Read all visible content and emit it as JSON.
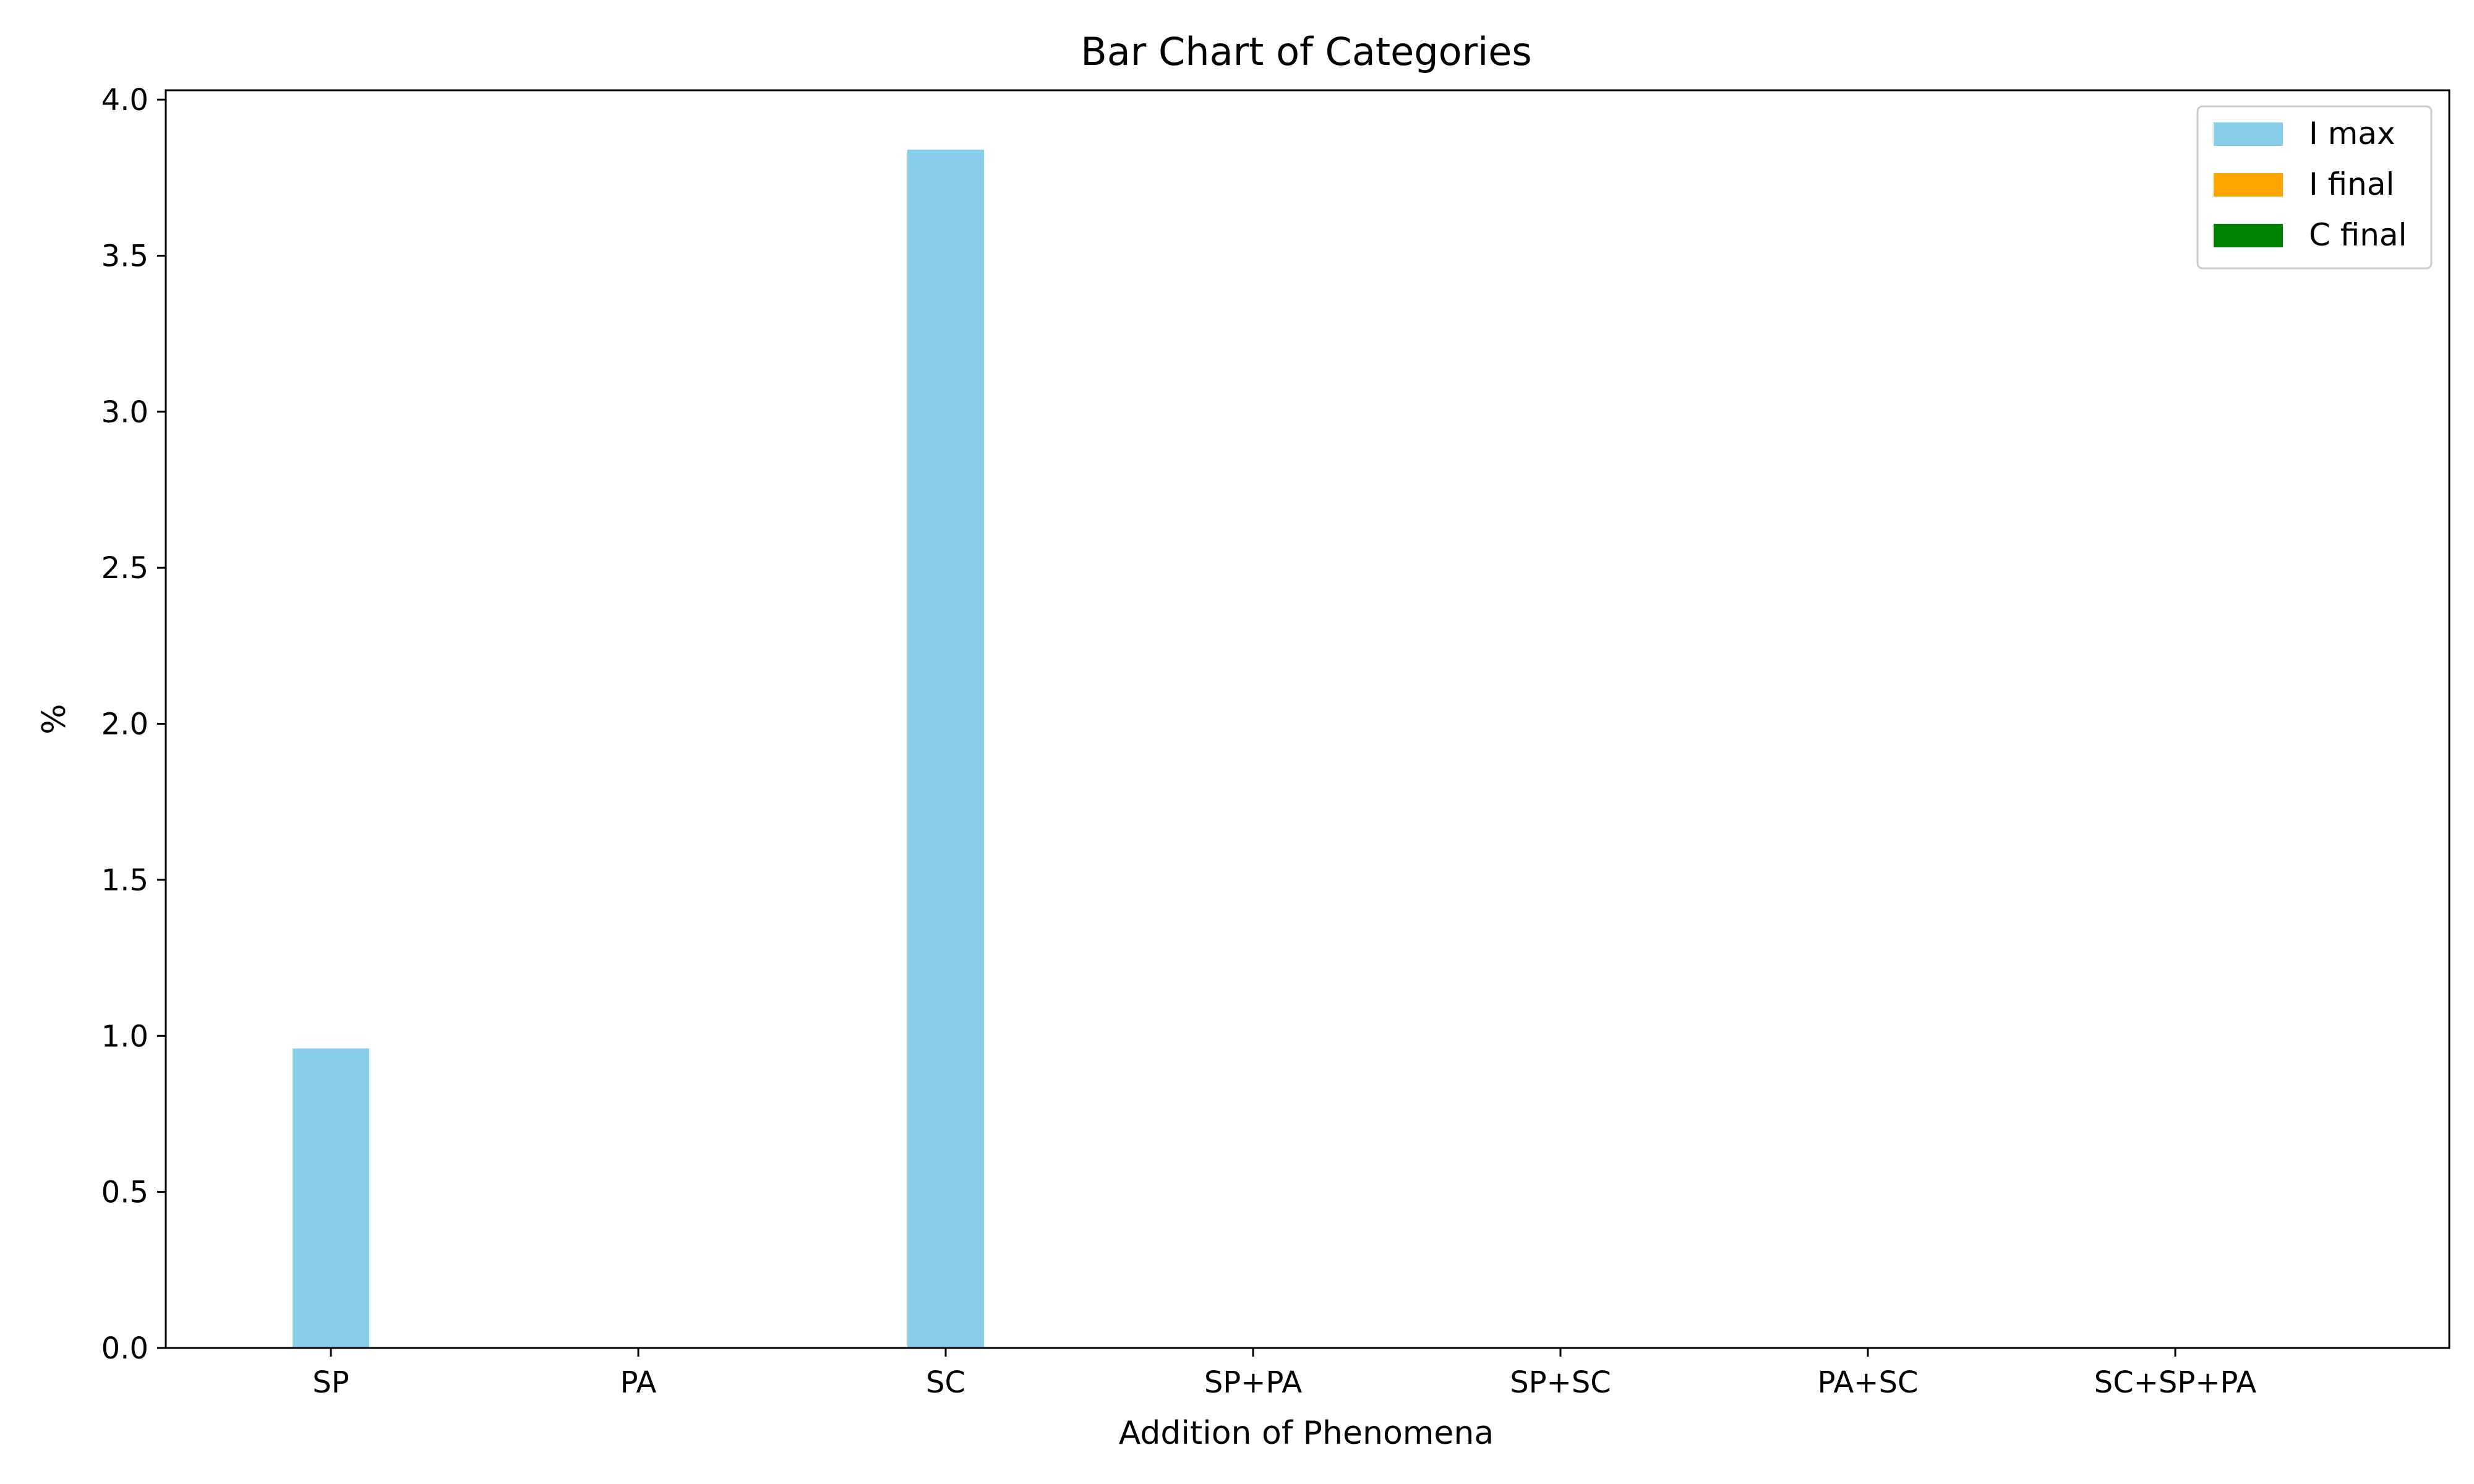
{
  "chart_data": {
    "type": "bar",
    "title": "Bar Chart of Categories",
    "xlabel": "Addition of Phenomena",
    "ylabel": "%",
    "categories": [
      "SP",
      "PA",
      "SC",
      "SP+PA",
      "SP+SC",
      "PA+SC",
      "SC+SP+PA"
    ],
    "series": [
      {
        "name": "I max",
        "color": "#87ceeb",
        "values": [
          0.96,
          0,
          3.84,
          0,
          0,
          0,
          0
        ]
      },
      {
        "name": "I final",
        "color": "#ffa500",
        "values": [
          0,
          0,
          0,
          0,
          0,
          0,
          0
        ]
      },
      {
        "name": "C final",
        "color": "#008000",
        "values": [
          0,
          0,
          0,
          0,
          0,
          0,
          0
        ]
      }
    ],
    "ylim": [
      0,
      4.03
    ],
    "yticks": [
      "0.0",
      "0.5",
      "1.0",
      "1.5",
      "2.0",
      "2.5",
      "3.0",
      "3.5",
      "4.0"
    ],
    "grid": false,
    "legend_position": "top-right"
  }
}
